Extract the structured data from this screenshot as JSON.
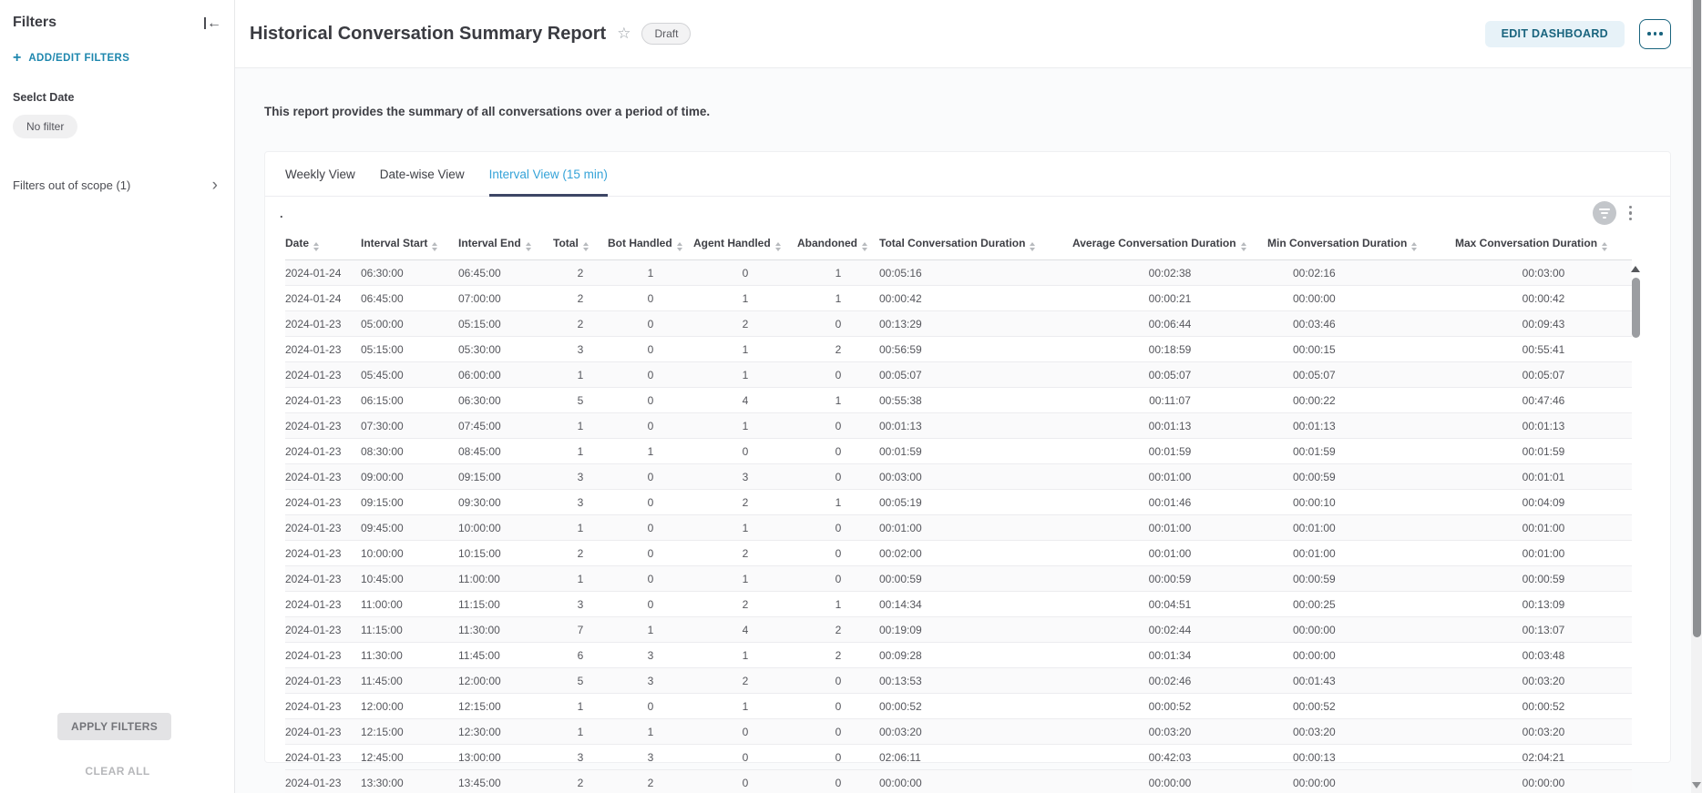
{
  "sidebar": {
    "title": "Filters",
    "add_edit_label": "ADD/EDIT FILTERS",
    "filter_group_label": "Seelct Date",
    "filter_chip": "No filter",
    "out_of_scope_label": "Filters out of scope (1)",
    "apply_label": "APPLY FILTERS",
    "clear_label": "CLEAR ALL"
  },
  "header": {
    "title": "Historical Conversation Summary Report",
    "status_badge": "Draft",
    "edit_button": "EDIT DASHBOARD"
  },
  "report": {
    "description": "This report provides the summary of all conversations over a period of time.",
    "widget_title": ".",
    "tabs": [
      {
        "label": "Weekly View",
        "active": false
      },
      {
        "label": "Date-wise View",
        "active": false
      },
      {
        "label": "Interval View (15 min)",
        "active": true
      }
    ]
  },
  "table": {
    "columns": [
      "Date",
      "Interval Start",
      "Interval End",
      "Total",
      "Bot Handled",
      "Agent Handled",
      "Abandoned",
      "Total Conversation Duration",
      "Average Conversation Duration",
      "Min Conversation Duration",
      "Max Conversation Duration"
    ],
    "rows": [
      [
        "2024-01-24",
        "06:30:00",
        "06:45:00",
        "2",
        "1",
        "0",
        "1",
        "00:05:16",
        "00:02:38",
        "00:02:16",
        "00:03:00"
      ],
      [
        "2024-01-24",
        "06:45:00",
        "07:00:00",
        "2",
        "0",
        "1",
        "1",
        "00:00:42",
        "00:00:21",
        "00:00:00",
        "00:00:42"
      ],
      [
        "2024-01-23",
        "05:00:00",
        "05:15:00",
        "2",
        "0",
        "2",
        "0",
        "00:13:29",
        "00:06:44",
        "00:03:46",
        "00:09:43"
      ],
      [
        "2024-01-23",
        "05:15:00",
        "05:30:00",
        "3",
        "0",
        "1",
        "2",
        "00:56:59",
        "00:18:59",
        "00:00:15",
        "00:55:41"
      ],
      [
        "2024-01-23",
        "05:45:00",
        "06:00:00",
        "1",
        "0",
        "1",
        "0",
        "00:05:07",
        "00:05:07",
        "00:05:07",
        "00:05:07"
      ],
      [
        "2024-01-23",
        "06:15:00",
        "06:30:00",
        "5",
        "0",
        "4",
        "1",
        "00:55:38",
        "00:11:07",
        "00:00:22",
        "00:47:46"
      ],
      [
        "2024-01-23",
        "07:30:00",
        "07:45:00",
        "1",
        "0",
        "1",
        "0",
        "00:01:13",
        "00:01:13",
        "00:01:13",
        "00:01:13"
      ],
      [
        "2024-01-23",
        "08:30:00",
        "08:45:00",
        "1",
        "1",
        "0",
        "0",
        "00:01:59",
        "00:01:59",
        "00:01:59",
        "00:01:59"
      ],
      [
        "2024-01-23",
        "09:00:00",
        "09:15:00",
        "3",
        "0",
        "3",
        "0",
        "00:03:00",
        "00:01:00",
        "00:00:59",
        "00:01:01"
      ],
      [
        "2024-01-23",
        "09:15:00",
        "09:30:00",
        "3",
        "0",
        "2",
        "1",
        "00:05:19",
        "00:01:46",
        "00:00:10",
        "00:04:09"
      ],
      [
        "2024-01-23",
        "09:45:00",
        "10:00:00",
        "1",
        "0",
        "1",
        "0",
        "00:01:00",
        "00:01:00",
        "00:01:00",
        "00:01:00"
      ],
      [
        "2024-01-23",
        "10:00:00",
        "10:15:00",
        "2",
        "0",
        "2",
        "0",
        "00:02:00",
        "00:01:00",
        "00:01:00",
        "00:01:00"
      ],
      [
        "2024-01-23",
        "10:45:00",
        "11:00:00",
        "1",
        "0",
        "1",
        "0",
        "00:00:59",
        "00:00:59",
        "00:00:59",
        "00:00:59"
      ],
      [
        "2024-01-23",
        "11:00:00",
        "11:15:00",
        "3",
        "0",
        "2",
        "1",
        "00:14:34",
        "00:04:51",
        "00:00:25",
        "00:13:09"
      ],
      [
        "2024-01-23",
        "11:15:00",
        "11:30:00",
        "7",
        "1",
        "4",
        "2",
        "00:19:09",
        "00:02:44",
        "00:00:00",
        "00:13:07"
      ],
      [
        "2024-01-23",
        "11:30:00",
        "11:45:00",
        "6",
        "3",
        "1",
        "2",
        "00:09:28",
        "00:01:34",
        "00:00:00",
        "00:03:48"
      ],
      [
        "2024-01-23",
        "11:45:00",
        "12:00:00",
        "5",
        "3",
        "2",
        "0",
        "00:13:53",
        "00:02:46",
        "00:01:43",
        "00:03:20"
      ],
      [
        "2024-01-23",
        "12:00:00",
        "12:15:00",
        "1",
        "0",
        "1",
        "0",
        "00:00:52",
        "00:00:52",
        "00:00:52",
        "00:00:52"
      ],
      [
        "2024-01-23",
        "12:15:00",
        "12:30:00",
        "1",
        "1",
        "0",
        "0",
        "00:03:20",
        "00:03:20",
        "00:03:20",
        "00:03:20"
      ],
      [
        "2024-01-23",
        "12:45:00",
        "13:00:00",
        "3",
        "3",
        "0",
        "0",
        "02:06:11",
        "00:42:03",
        "00:00:13",
        "02:04:21"
      ],
      [
        "2024-01-23",
        "13:30:00",
        "13:45:00",
        "2",
        "2",
        "0",
        "0",
        "00:00:00",
        "00:00:00",
        "00:00:00",
        "00:00:00"
      ]
    ]
  },
  "colors": {
    "link_blue": "#1e87ae",
    "active_tab_blue": "#35a3d8",
    "tab_underline_navy": "#3d4665",
    "edit_button_teal": "#19647e",
    "edit_button_bg": "#e7f2f8"
  }
}
